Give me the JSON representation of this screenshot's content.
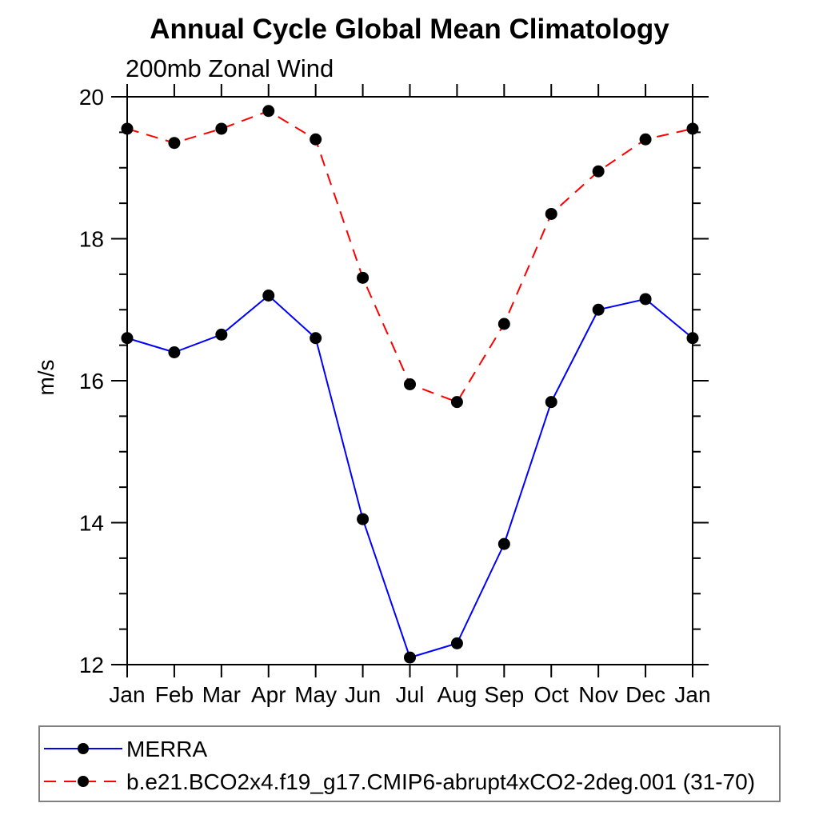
{
  "chart_data": {
    "type": "line",
    "title": "Annual Cycle Global Mean Climatology",
    "subtitle": "200mb Zonal Wind",
    "ylabel": "m/s",
    "categories": [
      "Jan",
      "Feb",
      "Mar",
      "Apr",
      "May",
      "Jun",
      "Jul",
      "Aug",
      "Sep",
      "Oct",
      "Nov",
      "Dec",
      "Jan"
    ],
    "ylim": [
      12,
      20
    ],
    "yticks": [
      12,
      14,
      16,
      18,
      20
    ],
    "minor_tick_step": 0.5,
    "grid": false,
    "legend_position": "bottom",
    "marker": {
      "shape": "circle",
      "color": "#000000"
    },
    "axis_color": "#000000",
    "legend_border_color": "#808080",
    "series": [
      {
        "name": "MERRA",
        "color": "#0000ff",
        "line_style": "solid",
        "values": [
          16.6,
          16.4,
          16.65,
          17.2,
          16.6,
          14.05,
          12.1,
          12.3,
          13.7,
          15.7,
          17.0,
          17.15,
          16.6
        ]
      },
      {
        "name": "b.e21.BCO2x4.f19_g17.CMIP6-abrupt4xCO2-2deg.001 (31-70)",
        "color": "#ff0000",
        "line_style": "dashed",
        "values": [
          19.55,
          19.35,
          19.55,
          19.8,
          19.4,
          17.45,
          15.95,
          15.7,
          16.8,
          18.35,
          18.95,
          19.4,
          19.55
        ]
      }
    ]
  }
}
